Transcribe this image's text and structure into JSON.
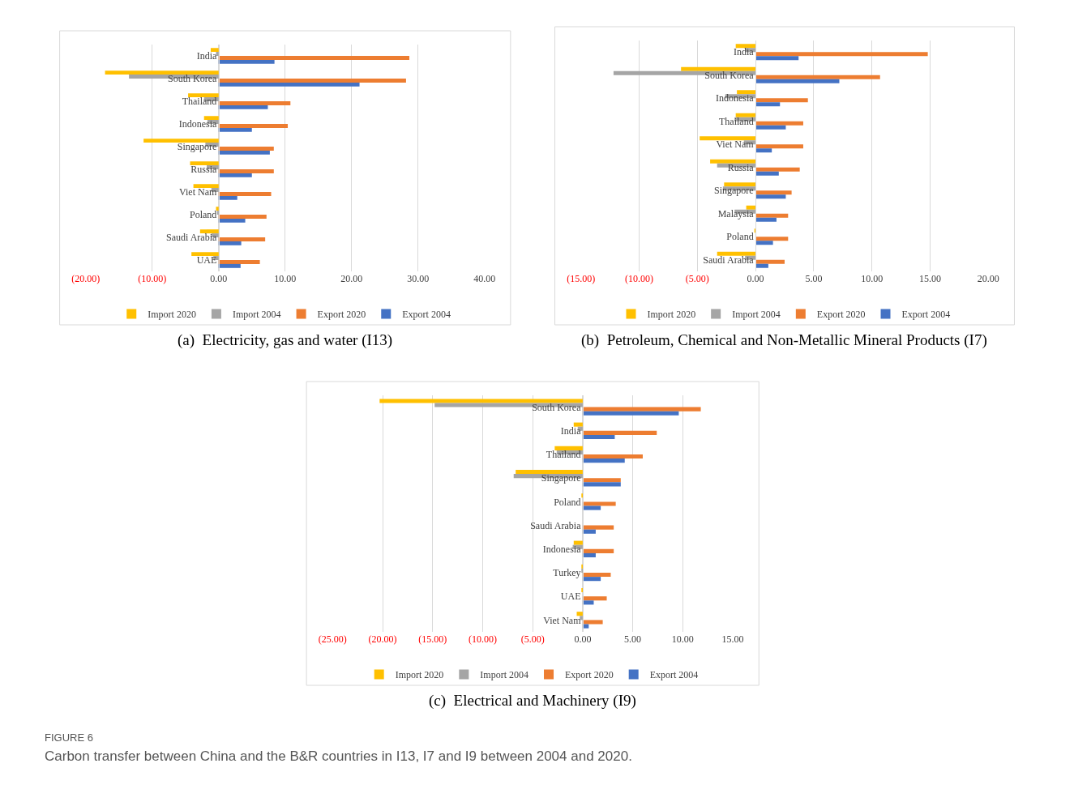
{
  "chart_data": [
    {
      "type": "bar",
      "orientation": "horizontal",
      "title": "(a)  Electricity, gas and water (I13)",
      "grid": "x",
      "legend": "bottom",
      "categories": [
        "India",
        "South Korea",
        "Thailand",
        "Indonesia",
        "Singapore",
        "Russia",
        "Viet Nam",
        "Poland",
        "Saudi Arabia",
        "UAE"
      ],
      "xlim": [
        -20,
        40
      ],
      "xticks": [
        {
          "value": -20,
          "label": "(20.00)"
        },
        {
          "value": -10,
          "label": "(10.00)"
        },
        {
          "value": 0,
          "label": "0.00"
        },
        {
          "value": 10,
          "label": "10.00"
        },
        {
          "value": 20,
          "label": "20.00"
        },
        {
          "value": 30,
          "label": "30.00"
        },
        {
          "value": 40,
          "label": "40.00"
        }
      ],
      "series": [
        {
          "name": "Import 2020",
          "color": "#ffc000",
          "values": [
            -1.2,
            -17.1,
            -4.6,
            -2.2,
            -11.3,
            -4.3,
            -3.8,
            -0.4,
            -2.8,
            -4.1
          ]
        },
        {
          "name": "Import 2004",
          "color": "#a5a5a5",
          "values": [
            -0.4,
            -13.5,
            -2.2,
            -1.7,
            -2.0,
            -1.8,
            -1.1,
            -0.2,
            -1.1,
            -0.8
          ]
        },
        {
          "name": "Export 2020",
          "color": "#ed7d31",
          "values": [
            28.7,
            28.2,
            10.8,
            10.4,
            8.3,
            8.3,
            7.9,
            7.2,
            7.0,
            6.2
          ]
        },
        {
          "name": "Export 2004",
          "color": "#4472c4",
          "values": [
            8.4,
            21.2,
            7.4,
            5.0,
            7.7,
            5.0,
            2.8,
            4.0,
            3.4,
            3.3
          ]
        }
      ]
    },
    {
      "type": "bar",
      "orientation": "horizontal",
      "title": "(b)  Petroleum, Chemical and Non-Metallic Mineral Products (I7)",
      "grid": "x",
      "legend": "bottom",
      "categories": [
        "India",
        "South Korea",
        "Indonesia",
        "Thailand",
        "Viet Nam",
        "Russia",
        "Singapore",
        "Malaysia",
        "Poland",
        "Saudi Arabia"
      ],
      "xlim": [
        -15,
        20
      ],
      "xticks": [
        {
          "value": -15,
          "label": "(15.00)"
        },
        {
          "value": -10,
          "label": "(10.00)"
        },
        {
          "value": -5,
          "label": "(5.00)"
        },
        {
          "value": 0,
          "label": "0.00"
        },
        {
          "value": 5,
          "label": "5.00"
        },
        {
          "value": 10,
          "label": "10.00"
        },
        {
          "value": 15,
          "label": "15.00"
        },
        {
          "value": 20,
          "label": "20.00"
        }
      ],
      "series": [
        {
          "name": "Import 2020",
          "color": "#ffc000",
          "values": [
            -1.7,
            -6.4,
            -1.6,
            -1.7,
            -4.8,
            -3.9,
            -2.7,
            -0.8,
            -0.1,
            -3.3
          ]
        },
        {
          "name": "Import 2004",
          "color": "#a5a5a5",
          "values": [
            -0.9,
            -12.2,
            -2.6,
            -1.8,
            -1.0,
            -3.3,
            -2.8,
            -1.8,
            0.0,
            -0.9
          ]
        },
        {
          "name": "Export 2020",
          "color": "#ed7d31",
          "values": [
            14.8,
            10.7,
            4.5,
            4.1,
            4.1,
            3.8,
            3.1,
            2.8,
            2.8,
            2.5
          ]
        },
        {
          "name": "Export 2004",
          "color": "#4472c4",
          "values": [
            3.7,
            7.2,
            2.1,
            2.6,
            1.4,
            2.0,
            2.6,
            1.8,
            1.5,
            1.1
          ]
        }
      ]
    },
    {
      "type": "bar",
      "orientation": "horizontal",
      "title": "(c)  Electrical and Machinery (I9)",
      "grid": "x",
      "legend": "bottom",
      "categories": [
        "South Korea",
        "India",
        "Thailand",
        "Singapore",
        "Poland",
        "Saudi Arabia",
        "Indonesia",
        "Turkey",
        "UAE",
        "Viet Nam"
      ],
      "xlim": [
        -25,
        15
      ],
      "xticks": [
        {
          "value": -25,
          "label": "(25.00)"
        },
        {
          "value": -20,
          "label": "(20.00)"
        },
        {
          "value": -15,
          "label": "(15.00)"
        },
        {
          "value": -10,
          "label": "(10.00)"
        },
        {
          "value": -5,
          "label": "(5.00)"
        },
        {
          "value": 0,
          "label": "0.00"
        },
        {
          "value": 5,
          "label": "5.00"
        },
        {
          "value": 10,
          "label": "10.00"
        },
        {
          "value": 15,
          "label": "15.00"
        }
      ],
      "series": [
        {
          "name": "Import 2020",
          "color": "#ffc000",
          "values": [
            -20.3,
            -0.9,
            -2.8,
            -6.7,
            -0.1,
            0.0,
            -0.9,
            -0.1,
            -0.1,
            -0.6
          ]
        },
        {
          "name": "Import 2004",
          "color": "#a5a5a5",
          "values": [
            -14.8,
            -0.5,
            -2.6,
            -6.9,
            0.0,
            0.0,
            -1.0,
            -0.1,
            0.0,
            -0.3
          ]
        },
        {
          "name": "Export 2020",
          "color": "#ed7d31",
          "values": [
            11.8,
            7.4,
            6.0,
            3.8,
            3.3,
            3.1,
            3.1,
            2.8,
            2.4,
            2.0
          ]
        },
        {
          "name": "Export 2004",
          "color": "#4472c4",
          "values": [
            9.6,
            3.2,
            4.2,
            3.8,
            1.8,
            1.3,
            1.3,
            1.8,
            1.1,
            0.6
          ]
        }
      ],
      "annotations": [
        "FIGURE 6",
        "Carbon transfer between China and the B&R countries in I13, I7 and I9 between 2004 and 2020."
      ]
    }
  ]
}
